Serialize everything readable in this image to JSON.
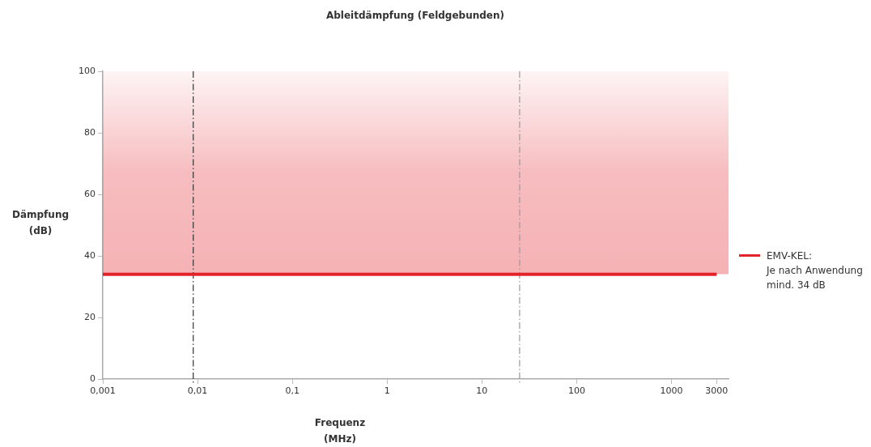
{
  "chart_data": {
    "type": "line",
    "title": "Ableitdämpfung (Feldgebunden)",
    "xlabel": "Frequenz (MHz)",
    "ylabel": "Dämpfung (dB)",
    "log": "x",
    "xlim": [
      0.001,
      4000
    ],
    "xticks": [
      {
        "value": 0.001,
        "label": "0,001"
      },
      {
        "value": 0.01,
        "label": "0,01"
      },
      {
        "value": 0.1,
        "label": "0,1"
      },
      1,
      10,
      100,
      1000,
      3000
    ],
    "ylim": [
      0,
      100
    ],
    "yticks": [
      0,
      20,
      40,
      60,
      80,
      100
    ],
    "grid": false,
    "legend": "right",
    "marker": "none",
    "line_style": "solid",
    "series": [
      {
        "name": "EMV-KEL:\nJe nach Anwendung\nmind. 34 dB",
        "color": "#e3232c",
        "x": [
          0.001,
          3000
        ],
        "values": [
          34,
          34
        ]
      }
    ],
    "bands": [
      {
        "axis": "y",
        "from": 34,
        "to": 100,
        "color": "#e3232c"
      }
    ],
    "ref_lines": [
      {
        "axis": "x",
        "value": 0.009,
        "color": "#333333",
        "line_style": "dashdot"
      },
      {
        "axis": "x",
        "value": 25,
        "color": "#999999",
        "line_style": "dashdot"
      }
    ]
  }
}
